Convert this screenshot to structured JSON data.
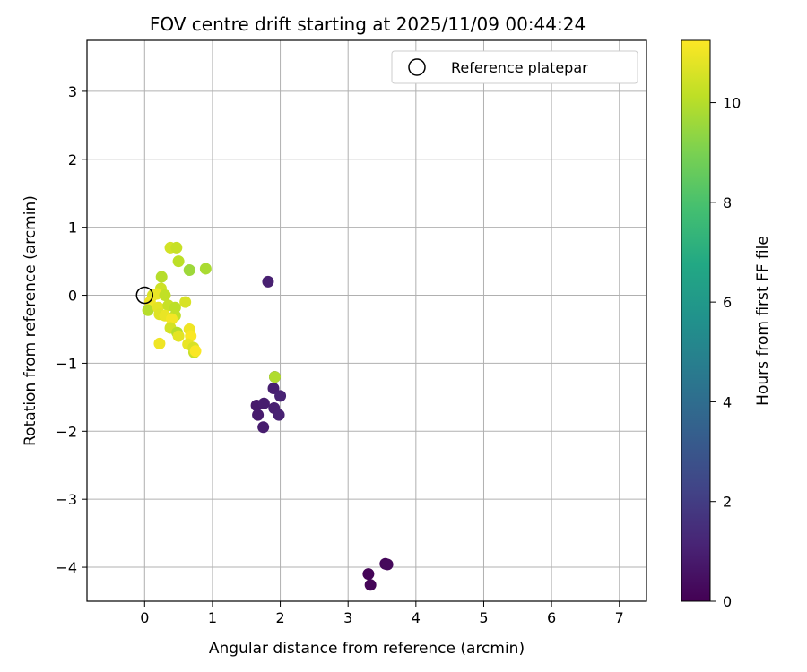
{
  "chart_data": {
    "type": "scatter",
    "title": "FOV centre drift starting at 2025/11/09 00:44:24",
    "xlabel": "Angular distance from reference (arcmin)",
    "ylabel": "Rotation from reference (arcmin)",
    "xlim": [
      -0.85,
      7.4
    ],
    "ylim": [
      -4.5,
      3.75
    ],
    "xticks": [
      0,
      1,
      2,
      3,
      4,
      5,
      6,
      7
    ],
    "yticks": [
      -4,
      -3,
      -2,
      -1,
      0,
      1,
      2,
      3
    ],
    "grid": true,
    "legend": {
      "placement": "top-right",
      "entries": [
        {
          "label": "Reference platepar",
          "marker": "open-circle"
        }
      ]
    },
    "reference_point": {
      "x": 0,
      "y": 0
    },
    "colorbar": {
      "label": "Hours from first FF file",
      "colormap": "viridis",
      "range": [
        0,
        11.25
      ],
      "ticks": [
        0,
        2,
        4,
        6,
        8,
        10
      ]
    },
    "points": [
      {
        "x": 3.3,
        "y": -4.1,
        "h": 0.1
      },
      {
        "x": 3.33,
        "y": -4.26,
        "h": 0.15
      },
      {
        "x": 3.55,
        "y": -3.95,
        "h": 0.2
      },
      {
        "x": 3.58,
        "y": -3.96,
        "h": 0.25
      },
      {
        "x": 1.82,
        "y": 0.2,
        "h": 1.0
      },
      {
        "x": 1.65,
        "y": -1.62,
        "h": 0.8
      },
      {
        "x": 1.67,
        "y": -1.76,
        "h": 0.85
      },
      {
        "x": 1.76,
        "y": -1.59,
        "h": 0.9
      },
      {
        "x": 1.75,
        "y": -1.94,
        "h": 0.9
      },
      {
        "x": 1.9,
        "y": -1.37,
        "h": 0.95
      },
      {
        "x": 1.91,
        "y": -1.66,
        "h": 1.0
      },
      {
        "x": 1.98,
        "y": -1.76,
        "h": 1.05
      },
      {
        "x": 2.0,
        "y": -1.48,
        "h": 1.1
      },
      {
        "x": 1.92,
        "y": -1.2,
        "h": 1.1
      },
      {
        "x": 1.92,
        "y": -1.2,
        "h": 9.9
      },
      {
        "x": 0.38,
        "y": 0.7,
        "h": 10.5
      },
      {
        "x": 0.47,
        "y": 0.7,
        "h": 10.3
      },
      {
        "x": 0.5,
        "y": 0.5,
        "h": 10.1
      },
      {
        "x": 0.66,
        "y": 0.37,
        "h": 9.6
      },
      {
        "x": 0.9,
        "y": 0.39,
        "h": 9.8
      },
      {
        "x": 0.25,
        "y": 0.27,
        "h": 10.0
      },
      {
        "x": 0.24,
        "y": 0.1,
        "h": 10.4
      },
      {
        "x": 0.12,
        "y": 0.0,
        "h": 10.6
      },
      {
        "x": 0.18,
        "y": 0.02,
        "h": 10.9
      },
      {
        "x": 0.3,
        "y": 0.0,
        "h": 10.2
      },
      {
        "x": 0.08,
        "y": -0.1,
        "h": 11.0
      },
      {
        "x": 0.05,
        "y": -0.22,
        "h": 10.0
      },
      {
        "x": 0.2,
        "y": -0.18,
        "h": 10.8
      },
      {
        "x": 0.35,
        "y": -0.15,
        "h": 10.3
      },
      {
        "x": 0.45,
        "y": -0.18,
        "h": 10.1
      },
      {
        "x": 0.6,
        "y": -0.1,
        "h": 10.6
      },
      {
        "x": 0.22,
        "y": -0.28,
        "h": 10.7
      },
      {
        "x": 0.3,
        "y": -0.3,
        "h": 10.9
      },
      {
        "x": 0.45,
        "y": -0.3,
        "h": 10.2
      },
      {
        "x": 0.4,
        "y": -0.35,
        "h": 11.1
      },
      {
        "x": 0.38,
        "y": -0.48,
        "h": 10.5
      },
      {
        "x": 0.48,
        "y": -0.55,
        "h": 10.0
      },
      {
        "x": 0.5,
        "y": -0.6,
        "h": 10.8
      },
      {
        "x": 0.66,
        "y": -0.5,
        "h": 11.0
      },
      {
        "x": 0.68,
        "y": -0.6,
        "h": 11.2
      },
      {
        "x": 0.64,
        "y": -0.72,
        "h": 10.9
      },
      {
        "x": 0.72,
        "y": -0.77,
        "h": 10.6
      },
      {
        "x": 0.73,
        "y": -0.84,
        "h": 10.3
      },
      {
        "x": 0.75,
        "y": -0.82,
        "h": 11.2
      },
      {
        "x": 0.22,
        "y": -0.71,
        "h": 11.0
      }
    ]
  }
}
